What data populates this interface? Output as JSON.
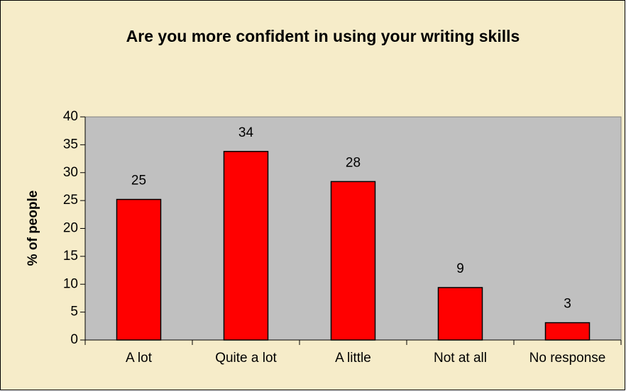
{
  "chart_data": {
    "type": "bar",
    "title": "Are you more confident in using your writing skills",
    "ylabel": "% of people",
    "categories": [
      "A lot",
      "Quite a lot",
      "A little",
      "Not at all",
      "No response"
    ],
    "values": [
      25.2,
      33.8,
      28.4,
      9.4,
      3.1
    ],
    "value_labels": [
      "25",
      "34",
      "28",
      "9",
      "3"
    ],
    "color": "#ff0000",
    "ylim": [
      0,
      40
    ],
    "yticks": [
      0,
      5,
      10,
      15,
      20,
      25,
      30,
      35,
      40
    ],
    "grid": false
  }
}
